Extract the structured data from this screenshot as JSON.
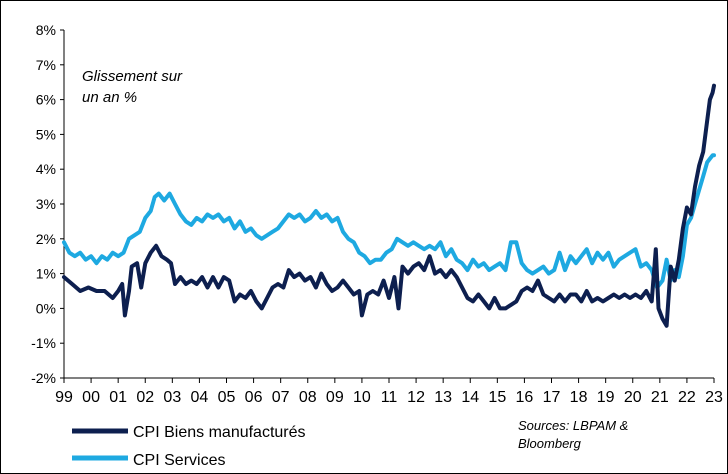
{
  "chart_data": {
    "type": "line",
    "ylim": [
      -2,
      8
    ],
    "xlim": [
      1999,
      2023
    ],
    "y_ticks": [
      "8%",
      "7%",
      "6%",
      "5%",
      "4%",
      "3%",
      "2%",
      "1%",
      "0%",
      "-1%",
      "-2%"
    ],
    "x_ticks": [
      "99",
      "00",
      "01",
      "02",
      "03",
      "04",
      "05",
      "06",
      "07",
      "08",
      "09",
      "10",
      "11",
      "12",
      "13",
      "14",
      "15",
      "16",
      "17",
      "18",
      "19",
      "20",
      "21",
      "22",
      "23"
    ],
    "annotation": [
      "Glissement sur",
      "un an %"
    ],
    "source": [
      "Sources: LBPAM &",
      "Bloomberg"
    ],
    "grid": false,
    "legend_position": "bottom-left",
    "series": [
      {
        "name": "CPI Biens manufacturés",
        "color": "#0d1f4f",
        "points": [
          [
            1999.0,
            0.9
          ],
          [
            1999.3,
            0.7
          ],
          [
            1999.6,
            0.5
          ],
          [
            1999.9,
            0.6
          ],
          [
            2000.2,
            0.5
          ],
          [
            2000.5,
            0.5
          ],
          [
            2000.8,
            0.3
          ],
          [
            2001.0,
            0.5
          ],
          [
            2001.15,
            0.7
          ],
          [
            2001.25,
            -0.2
          ],
          [
            2001.4,
            0.5
          ],
          [
            2001.5,
            1.2
          ],
          [
            2001.7,
            1.3
          ],
          [
            2001.85,
            0.6
          ],
          [
            2002.0,
            1.3
          ],
          [
            2002.2,
            1.6
          ],
          [
            2002.4,
            1.8
          ],
          [
            2002.6,
            1.5
          ],
          [
            2002.8,
            1.4
          ],
          [
            2002.95,
            1.3
          ],
          [
            2003.1,
            0.7
          ],
          [
            2003.3,
            0.9
          ],
          [
            2003.5,
            0.7
          ],
          [
            2003.7,
            0.8
          ],
          [
            2003.9,
            0.7
          ],
          [
            2004.1,
            0.9
          ],
          [
            2004.3,
            0.6
          ],
          [
            2004.5,
            0.9
          ],
          [
            2004.7,
            0.6
          ],
          [
            2004.9,
            0.9
          ],
          [
            2005.1,
            0.8
          ],
          [
            2005.3,
            0.2
          ],
          [
            2005.5,
            0.4
          ],
          [
            2005.7,
            0.3
          ],
          [
            2005.9,
            0.5
          ],
          [
            2006.1,
            0.2
          ],
          [
            2006.3,
            0.0
          ],
          [
            2006.5,
            0.3
          ],
          [
            2006.7,
            0.6
          ],
          [
            2006.9,
            0.7
          ],
          [
            2007.1,
            0.6
          ],
          [
            2007.3,
            1.1
          ],
          [
            2007.5,
            0.9
          ],
          [
            2007.7,
            1.0
          ],
          [
            2007.9,
            0.8
          ],
          [
            2008.1,
            0.9
          ],
          [
            2008.3,
            0.6
          ],
          [
            2008.5,
            1.0
          ],
          [
            2008.7,
            0.7
          ],
          [
            2008.9,
            0.5
          ],
          [
            2009.1,
            0.6
          ],
          [
            2009.3,
            0.8
          ],
          [
            2009.5,
            0.6
          ],
          [
            2009.7,
            0.4
          ],
          [
            2009.9,
            0.5
          ],
          [
            2010.0,
            -0.2
          ],
          [
            2010.2,
            0.4
          ],
          [
            2010.4,
            0.5
          ],
          [
            2010.6,
            0.4
          ],
          [
            2010.8,
            0.8
          ],
          [
            2011.0,
            0.3
          ],
          [
            2011.2,
            0.9
          ],
          [
            2011.35,
            0.0
          ],
          [
            2011.5,
            1.2
          ],
          [
            2011.7,
            1.0
          ],
          [
            2011.9,
            1.2
          ],
          [
            2012.1,
            1.3
          ],
          [
            2012.3,
            1.1
          ],
          [
            2012.5,
            1.5
          ],
          [
            2012.7,
            1.0
          ],
          [
            2012.9,
            1.1
          ],
          [
            2013.1,
            0.9
          ],
          [
            2013.3,
            1.1
          ],
          [
            2013.5,
            0.9
          ],
          [
            2013.7,
            0.6
          ],
          [
            2013.9,
            0.3
          ],
          [
            2014.1,
            0.2
          ],
          [
            2014.3,
            0.4
          ],
          [
            2014.5,
            0.2
          ],
          [
            2014.7,
            0.0
          ],
          [
            2014.9,
            0.3
          ],
          [
            2015.1,
            0.0
          ],
          [
            2015.3,
            0.0
          ],
          [
            2015.5,
            0.1
          ],
          [
            2015.7,
            0.2
          ],
          [
            2015.9,
            0.5
          ],
          [
            2016.1,
            0.6
          ],
          [
            2016.3,
            0.5
          ],
          [
            2016.5,
            0.8
          ],
          [
            2016.7,
            0.4
          ],
          [
            2016.9,
            0.3
          ],
          [
            2017.1,
            0.2
          ],
          [
            2017.3,
            0.4
          ],
          [
            2017.5,
            0.2
          ],
          [
            2017.7,
            0.4
          ],
          [
            2017.9,
            0.4
          ],
          [
            2018.1,
            0.2
          ],
          [
            2018.3,
            0.5
          ],
          [
            2018.5,
            0.2
          ],
          [
            2018.7,
            0.3
          ],
          [
            2018.9,
            0.2
          ],
          [
            2019.1,
            0.3
          ],
          [
            2019.3,
            0.4
          ],
          [
            2019.5,
            0.3
          ],
          [
            2019.7,
            0.4
          ],
          [
            2019.9,
            0.3
          ],
          [
            2020.1,
            0.4
          ],
          [
            2020.3,
            0.3
          ],
          [
            2020.5,
            0.5
          ],
          [
            2020.7,
            0.2
          ],
          [
            2020.85,
            1.7
          ],
          [
            2020.95,
            0.0
          ],
          [
            2021.1,
            -0.3
          ],
          [
            2021.25,
            -0.5
          ],
          [
            2021.4,
            1.2
          ],
          [
            2021.55,
            0.8
          ],
          [
            2021.7,
            1.4
          ],
          [
            2021.85,
            2.3
          ],
          [
            2022.0,
            2.9
          ],
          [
            2022.15,
            2.7
          ],
          [
            2022.3,
            3.5
          ],
          [
            2022.45,
            4.1
          ],
          [
            2022.6,
            4.5
          ],
          [
            2022.75,
            5.4
          ],
          [
            2022.85,
            6.0
          ],
          [
            2022.95,
            6.2
          ],
          [
            2023.0,
            6.4
          ]
        ]
      },
      {
        "name": "CPI Services",
        "color": "#1ea9e1",
        "points": [
          [
            1999.0,
            1.9
          ],
          [
            1999.2,
            1.6
          ],
          [
            1999.4,
            1.5
          ],
          [
            1999.6,
            1.6
          ],
          [
            1999.8,
            1.4
          ],
          [
            2000.0,
            1.5
          ],
          [
            2000.2,
            1.3
          ],
          [
            2000.4,
            1.5
          ],
          [
            2000.6,
            1.4
          ],
          [
            2000.8,
            1.6
          ],
          [
            2001.0,
            1.5
          ],
          [
            2001.2,
            1.6
          ],
          [
            2001.4,
            2.0
          ],
          [
            2001.6,
            2.1
          ],
          [
            2001.8,
            2.2
          ],
          [
            2002.0,
            2.6
          ],
          [
            2002.2,
            2.8
          ],
          [
            2002.35,
            3.2
          ],
          [
            2002.5,
            3.3
          ],
          [
            2002.7,
            3.1
          ],
          [
            2002.9,
            3.3
          ],
          [
            2003.1,
            3.0
          ],
          [
            2003.3,
            2.7
          ],
          [
            2003.5,
            2.5
          ],
          [
            2003.7,
            2.4
          ],
          [
            2003.9,
            2.6
          ],
          [
            2004.1,
            2.5
          ],
          [
            2004.3,
            2.7
          ],
          [
            2004.5,
            2.6
          ],
          [
            2004.7,
            2.7
          ],
          [
            2004.9,
            2.5
          ],
          [
            2005.1,
            2.6
          ],
          [
            2005.3,
            2.3
          ],
          [
            2005.5,
            2.5
          ],
          [
            2005.7,
            2.2
          ],
          [
            2005.9,
            2.3
          ],
          [
            2006.1,
            2.1
          ],
          [
            2006.3,
            2.0
          ],
          [
            2006.5,
            2.1
          ],
          [
            2006.7,
            2.2
          ],
          [
            2006.9,
            2.3
          ],
          [
            2007.1,
            2.5
          ],
          [
            2007.3,
            2.7
          ],
          [
            2007.5,
            2.6
          ],
          [
            2007.7,
            2.7
          ],
          [
            2007.9,
            2.5
          ],
          [
            2008.1,
            2.6
          ],
          [
            2008.3,
            2.8
          ],
          [
            2008.5,
            2.6
          ],
          [
            2008.7,
            2.7
          ],
          [
            2008.9,
            2.5
          ],
          [
            2009.1,
            2.6
          ],
          [
            2009.3,
            2.2
          ],
          [
            2009.5,
            2.0
          ],
          [
            2009.7,
            1.9
          ],
          [
            2009.9,
            1.6
          ],
          [
            2010.1,
            1.5
          ],
          [
            2010.3,
            1.3
          ],
          [
            2010.5,
            1.4
          ],
          [
            2010.7,
            1.4
          ],
          [
            2010.9,
            1.6
          ],
          [
            2011.1,
            1.7
          ],
          [
            2011.3,
            2.0
          ],
          [
            2011.5,
            1.9
          ],
          [
            2011.7,
            1.8
          ],
          [
            2011.9,
            1.9
          ],
          [
            2012.1,
            1.8
          ],
          [
            2012.3,
            1.7
          ],
          [
            2012.5,
            1.8
          ],
          [
            2012.7,
            1.7
          ],
          [
            2012.9,
            1.9
          ],
          [
            2013.1,
            1.5
          ],
          [
            2013.3,
            1.7
          ],
          [
            2013.5,
            1.4
          ],
          [
            2013.7,
            1.3
          ],
          [
            2013.9,
            1.1
          ],
          [
            2014.1,
            1.4
          ],
          [
            2014.3,
            1.2
          ],
          [
            2014.5,
            1.3
          ],
          [
            2014.7,
            1.1
          ],
          [
            2014.9,
            1.2
          ],
          [
            2015.1,
            1.3
          ],
          [
            2015.3,
            1.1
          ],
          [
            2015.5,
            1.9
          ],
          [
            2015.7,
            1.9
          ],
          [
            2015.9,
            1.3
          ],
          [
            2016.1,
            1.1
          ],
          [
            2016.3,
            1.0
          ],
          [
            2016.5,
            1.1
          ],
          [
            2016.7,
            1.2
          ],
          [
            2016.9,
            1.0
          ],
          [
            2017.1,
            1.1
          ],
          [
            2017.3,
            1.6
          ],
          [
            2017.5,
            1.1
          ],
          [
            2017.7,
            1.5
          ],
          [
            2017.9,
            1.3
          ],
          [
            2018.1,
            1.5
          ],
          [
            2018.3,
            1.7
          ],
          [
            2018.5,
            1.3
          ],
          [
            2018.7,
            1.6
          ],
          [
            2018.9,
            1.4
          ],
          [
            2019.1,
            1.6
          ],
          [
            2019.3,
            1.2
          ],
          [
            2019.5,
            1.4
          ],
          [
            2019.7,
            1.5
          ],
          [
            2019.9,
            1.6
          ],
          [
            2020.1,
            1.7
          ],
          [
            2020.3,
            1.2
          ],
          [
            2020.5,
            1.3
          ],
          [
            2020.7,
            1.1
          ],
          [
            2020.9,
            0.6
          ],
          [
            2021.1,
            0.8
          ],
          [
            2021.25,
            1.4
          ],
          [
            2021.4,
            0.8
          ],
          [
            2021.55,
            1.1
          ],
          [
            2021.7,
            0.9
          ],
          [
            2021.85,
            1.5
          ],
          [
            2022.0,
            2.4
          ],
          [
            2022.15,
            2.6
          ],
          [
            2022.3,
            3.0
          ],
          [
            2022.45,
            3.4
          ],
          [
            2022.6,
            3.8
          ],
          [
            2022.75,
            4.2
          ],
          [
            2022.85,
            4.3
          ],
          [
            2022.95,
            4.4
          ],
          [
            2023.0,
            4.4
          ]
        ]
      }
    ]
  }
}
